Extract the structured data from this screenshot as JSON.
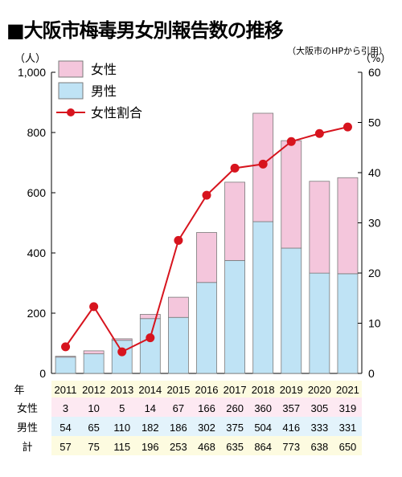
{
  "title": "■大阪市梅毒男女別報告数の推移",
  "source": "（大阪市のHPから引用）",
  "y_unit_left": "（人）",
  "y_unit_right": "（%）",
  "legend": {
    "female": "女性",
    "male": "男性",
    "ratio": "女性割合"
  },
  "table": {
    "year_label": "年",
    "female_label": "女性",
    "male_label": "男性",
    "total_label": "計"
  },
  "colors": {
    "female": "#f4c6dc",
    "male": "#bfe3f5",
    "line": "#d7141e",
    "bar_edge": "#7a7a7a"
  },
  "chart_data": {
    "type": "bar",
    "stacked": true,
    "title": "■大阪市梅毒男女別報告数の推移",
    "categories": [
      "2011",
      "2012",
      "2013",
      "2014",
      "2015",
      "2016",
      "2017",
      "2018",
      "2019",
      "2020",
      "2021"
    ],
    "series": [
      {
        "name": "男性",
        "values": [
          54,
          65,
          110,
          182,
          186,
          302,
          375,
          504,
          416,
          333,
          331
        ]
      },
      {
        "name": "女性",
        "values": [
          3,
          10,
          5,
          14,
          67,
          166,
          260,
          360,
          357,
          305,
          319
        ]
      }
    ],
    "totals": [
      57,
      75,
      115,
      196,
      253,
      468,
      635,
      864,
      773,
      638,
      650
    ],
    "line_series": {
      "name": "女性割合",
      "axis": "right",
      "values": [
        5.3,
        13.3,
        4.3,
        7.1,
        26.5,
        35.5,
        40.9,
        41.7,
        46.2,
        47.8,
        49.1
      ]
    },
    "ylim_left": [
      0,
      1000
    ],
    "yticks_left": [
      "0",
      "200",
      "400",
      "600",
      "800",
      "1,000"
    ],
    "ylim_right": [
      0,
      60
    ],
    "yticks_right": [
      "0",
      "10",
      "20",
      "30",
      "40",
      "50",
      "60"
    ],
    "legend_position": "top-left",
    "grid": false
  }
}
